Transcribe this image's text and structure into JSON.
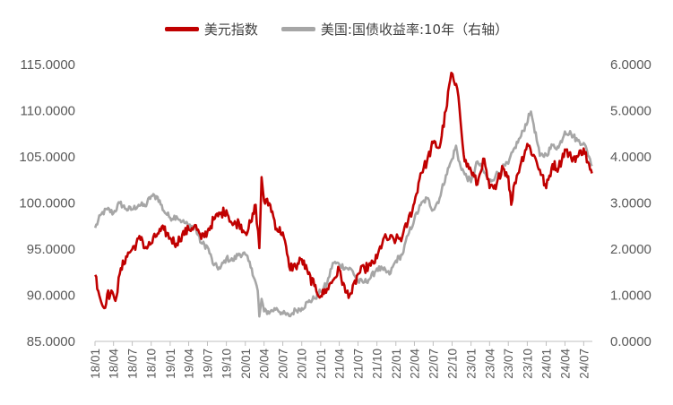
{
  "chart_data": {
    "type": "line",
    "legend": [
      {
        "label": "美元指数",
        "color": "#C00000"
      },
      {
        "label": "美国:国债收益率:10年（右轴）",
        "color": "#A6A6A6"
      }
    ],
    "legend_position": "top-center",
    "grid": false,
    "x_tick_labels": [
      "18/01",
      "18/04",
      "18/07",
      "18/10",
      "19/01",
      "19/04",
      "19/07",
      "19/10",
      "20/01",
      "20/04",
      "20/07",
      "20/10",
      "21/01",
      "21/04",
      "21/07",
      "21/10",
      "22/01",
      "22/04",
      "22/07",
      "22/10",
      "23/01",
      "23/04",
      "23/07",
      "23/10",
      "24/01",
      "24/04",
      "24/07"
    ],
    "y_left": {
      "min": 85,
      "max": 115,
      "ticks": [
        "85.0000",
        "90.0000",
        "95.0000",
        "100.0000",
        "105.0000",
        "110.0000",
        "115.0000"
      ]
    },
    "y_right": {
      "min": 0,
      "max": 6,
      "ticks": [
        "0.0000",
        "1.0000",
        "2.0000",
        "3.0000",
        "4.0000",
        "5.0000",
        "6.0000"
      ]
    },
    "series": [
      {
        "name": "美元指数",
        "axis": "left",
        "color": "#C00000",
        "points": [
          [
            "2018-01-02",
            92.2
          ],
          [
            "2018-02-01",
            89.2
          ],
          [
            "2018-02-15",
            88.6
          ],
          [
            "2018-03-01",
            90.1
          ],
          [
            "2018-04-01",
            90.0
          ],
          [
            "2018-04-15",
            89.8
          ],
          [
            "2018-05-01",
            92.3
          ],
          [
            "2018-06-01",
            94.2
          ],
          [
            "2018-07-01",
            95.0
          ],
          [
            "2018-08-15",
            96.3
          ],
          [
            "2018-09-01",
            95.1
          ],
          [
            "2018-10-01",
            95.6
          ],
          [
            "2018-11-01",
            96.7
          ],
          [
            "2018-12-01",
            97.1
          ],
          [
            "2019-01-01",
            96.2
          ],
          [
            "2019-02-01",
            95.6
          ],
          [
            "2019-03-01",
            96.6
          ],
          [
            "2019-04-01",
            97.1
          ],
          [
            "2019-05-01",
            97.6
          ],
          [
            "2019-06-01",
            96.1
          ],
          [
            "2019-07-01",
            96.9
          ],
          [
            "2019-08-01",
            98.2
          ],
          [
            "2019-09-01",
            98.8
          ],
          [
            "2019-10-01",
            99.2
          ],
          [
            "2019-11-01",
            97.6
          ],
          [
            "2019-12-01",
            97.9
          ],
          [
            "2020-01-01",
            96.8
          ],
          [
            "2020-02-01",
            98.0
          ],
          [
            "2020-02-20",
            99.8
          ],
          [
            "2020-03-09",
            95.1
          ],
          [
            "2020-03-20",
            102.8
          ],
          [
            "2020-04-01",
            100.2
          ],
          [
            "2020-05-01",
            99.8
          ],
          [
            "2020-06-01",
            97.2
          ],
          [
            "2020-07-01",
            96.8
          ],
          [
            "2020-08-01",
            93.1
          ],
          [
            "2020-09-01",
            93.1
          ],
          [
            "2020-10-01",
            93.9
          ],
          [
            "2020-11-01",
            92.3
          ],
          [
            "2020-12-01",
            91.0
          ],
          [
            "2021-01-01",
            89.9
          ],
          [
            "2021-02-01",
            90.7
          ],
          [
            "2021-03-01",
            91.6
          ],
          [
            "2021-04-01",
            92.8
          ],
          [
            "2021-05-01",
            90.3
          ],
          [
            "2021-06-01",
            90.2
          ],
          [
            "2021-07-01",
            92.3
          ],
          [
            "2021-08-01",
            92.9
          ],
          [
            "2021-09-01",
            93.2
          ],
          [
            "2021-10-01",
            94.0
          ],
          [
            "2021-11-01",
            96.1
          ],
          [
            "2021-12-01",
            96.1
          ],
          [
            "2022-01-01",
            96.0
          ],
          [
            "2022-02-01",
            96.3
          ],
          [
            "2022-03-01",
            98.0
          ],
          [
            "2022-04-01",
            100.0
          ],
          [
            "2022-05-01",
            103.2
          ],
          [
            "2022-06-01",
            104.5
          ],
          [
            "2022-07-01",
            106.5
          ],
          [
            "2022-08-01",
            106.0
          ],
          [
            "2022-09-01",
            110.0
          ],
          [
            "2022-09-27",
            114.1
          ],
          [
            "2022-10-15",
            112.8
          ],
          [
            "2022-11-01",
            111.5
          ],
          [
            "2022-12-01",
            104.5
          ],
          [
            "2023-01-01",
            103.5
          ],
          [
            "2023-02-01",
            102.0
          ],
          [
            "2023-03-01",
            104.8
          ],
          [
            "2023-04-01",
            101.6
          ],
          [
            "2023-05-01",
            101.5
          ],
          [
            "2023-06-01",
            104.0
          ],
          [
            "2023-07-01",
            102.9
          ],
          [
            "2023-07-15",
            99.8
          ],
          [
            "2023-08-01",
            102.2
          ],
          [
            "2023-09-01",
            104.4
          ],
          [
            "2023-10-01",
            106.4
          ],
          [
            "2023-11-01",
            105.2
          ],
          [
            "2023-12-01",
            103.6
          ],
          [
            "2024-01-01",
            101.6
          ],
          [
            "2024-02-01",
            104.2
          ],
          [
            "2024-03-01",
            103.8
          ],
          [
            "2024-04-01",
            105.8
          ],
          [
            "2024-05-01",
            104.9
          ],
          [
            "2024-06-01",
            105.0
          ],
          [
            "2024-07-01",
            105.9
          ],
          [
            "2024-08-01",
            103.6
          ],
          [
            "2024-08-10",
            103.2
          ]
        ]
      },
      {
        "name": "美国:国债收益率:10年（右轴）",
        "axis": "right",
        "color": "#A6A6A6",
        "points": [
          [
            "2018-01-02",
            2.46
          ],
          [
            "2018-02-01",
            2.76
          ],
          [
            "2018-03-01",
            2.86
          ],
          [
            "2018-04-01",
            2.78
          ],
          [
            "2018-05-01",
            3.0
          ],
          [
            "2018-06-01",
            2.87
          ],
          [
            "2018-07-01",
            2.86
          ],
          [
            "2018-08-01",
            2.96
          ],
          [
            "2018-09-01",
            2.93
          ],
          [
            "2018-10-01",
            3.15
          ],
          [
            "2018-11-01",
            3.13
          ],
          [
            "2018-12-01",
            2.83
          ],
          [
            "2019-01-01",
            2.68
          ],
          [
            "2019-02-01",
            2.71
          ],
          [
            "2019-03-01",
            2.6
          ],
          [
            "2019-04-01",
            2.51
          ],
          [
            "2019-05-01",
            2.48
          ],
          [
            "2019-06-01",
            2.13
          ],
          [
            "2019-07-01",
            2.05
          ],
          [
            "2019-08-01",
            1.65
          ],
          [
            "2019-09-01",
            1.58
          ],
          [
            "2019-10-01",
            1.8
          ],
          [
            "2019-11-01",
            1.75
          ],
          [
            "2019-12-01",
            1.9
          ],
          [
            "2020-01-01",
            1.88
          ],
          [
            "2020-02-01",
            1.58
          ],
          [
            "2020-03-01",
            1.1
          ],
          [
            "2020-03-09",
            0.54
          ],
          [
            "2020-03-20",
            0.92
          ],
          [
            "2020-04-01",
            0.65
          ],
          [
            "2020-05-01",
            0.64
          ],
          [
            "2020-06-01",
            0.72
          ],
          [
            "2020-07-01",
            0.6
          ],
          [
            "2020-08-01",
            0.55
          ],
          [
            "2020-09-01",
            0.68
          ],
          [
            "2020-10-01",
            0.72
          ],
          [
            "2020-11-01",
            0.85
          ],
          [
            "2020-12-01",
            0.93
          ],
          [
            "2021-01-01",
            1.08
          ],
          [
            "2021-02-01",
            1.25
          ],
          [
            "2021-03-01",
            1.7
          ],
          [
            "2021-04-01",
            1.67
          ],
          [
            "2021-05-01",
            1.6
          ],
          [
            "2021-06-01",
            1.55
          ],
          [
            "2021-07-01",
            1.3
          ],
          [
            "2021-08-01",
            1.28
          ],
          [
            "2021-09-01",
            1.38
          ],
          [
            "2021-10-01",
            1.58
          ],
          [
            "2021-11-01",
            1.55
          ],
          [
            "2021-12-01",
            1.45
          ],
          [
            "2022-01-01",
            1.75
          ],
          [
            "2022-02-01",
            1.88
          ],
          [
            "2022-03-01",
            2.3
          ],
          [
            "2022-04-01",
            2.65
          ],
          [
            "2022-05-01",
            2.95
          ],
          [
            "2022-06-01",
            3.1
          ],
          [
            "2022-07-01",
            2.85
          ],
          [
            "2022-08-01",
            3.1
          ],
          [
            "2022-09-01",
            3.6
          ],
          [
            "2022-10-01",
            3.95
          ],
          [
            "2022-10-20",
            4.24
          ],
          [
            "2022-11-01",
            3.92
          ],
          [
            "2022-12-01",
            3.62
          ],
          [
            "2023-01-01",
            3.45
          ],
          [
            "2023-02-01",
            3.9
          ],
          [
            "2023-03-01",
            3.7
          ],
          [
            "2023-04-01",
            3.45
          ],
          [
            "2023-05-01",
            3.6
          ],
          [
            "2023-06-01",
            3.75
          ],
          [
            "2023-07-01",
            3.85
          ],
          [
            "2023-08-01",
            4.2
          ],
          [
            "2023-09-01",
            4.45
          ],
          [
            "2023-10-19",
            4.98
          ],
          [
            "2023-11-01",
            4.7
          ],
          [
            "2023-12-01",
            4.02
          ],
          [
            "2024-01-01",
            4.05
          ],
          [
            "2024-02-01",
            4.25
          ],
          [
            "2024-03-01",
            4.2
          ],
          [
            "2024-04-01",
            4.55
          ],
          [
            "2024-05-01",
            4.5
          ],
          [
            "2024-06-01",
            4.35
          ],
          [
            "2024-07-01",
            4.3
          ],
          [
            "2024-08-01",
            3.95
          ],
          [
            "2024-08-10",
            3.8
          ]
        ]
      }
    ]
  }
}
